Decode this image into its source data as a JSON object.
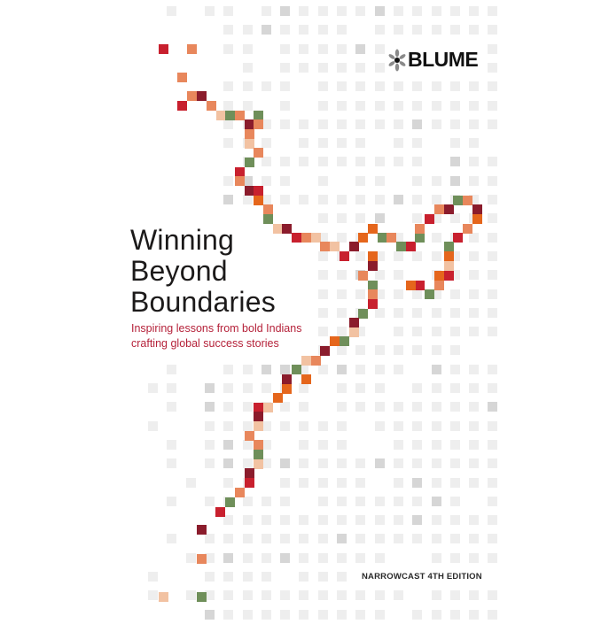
{
  "cover": {
    "title_lines": [
      "Winning",
      "Beyond",
      "Boundaries"
    ],
    "subtitle_lines": [
      "Inspiring lessons from bold Indians",
      "crafting global success stories"
    ],
    "edition": "NARROWCAST 4TH EDITION",
    "publisher_logo": "BLUME"
  },
  "colors": {
    "title": "#1c1a1a",
    "subtitle": "#b5223a",
    "grid_light": "#eeeeee",
    "grid_dark": "#d6d6d6",
    "path_dark_red": "#8b1c2c",
    "path_red": "#c8202e",
    "path_orange": "#e5661c",
    "path_salmon": "#e8875c",
    "path_peach": "#f2c2a2",
    "path_green": "#6f8f5a"
  }
}
